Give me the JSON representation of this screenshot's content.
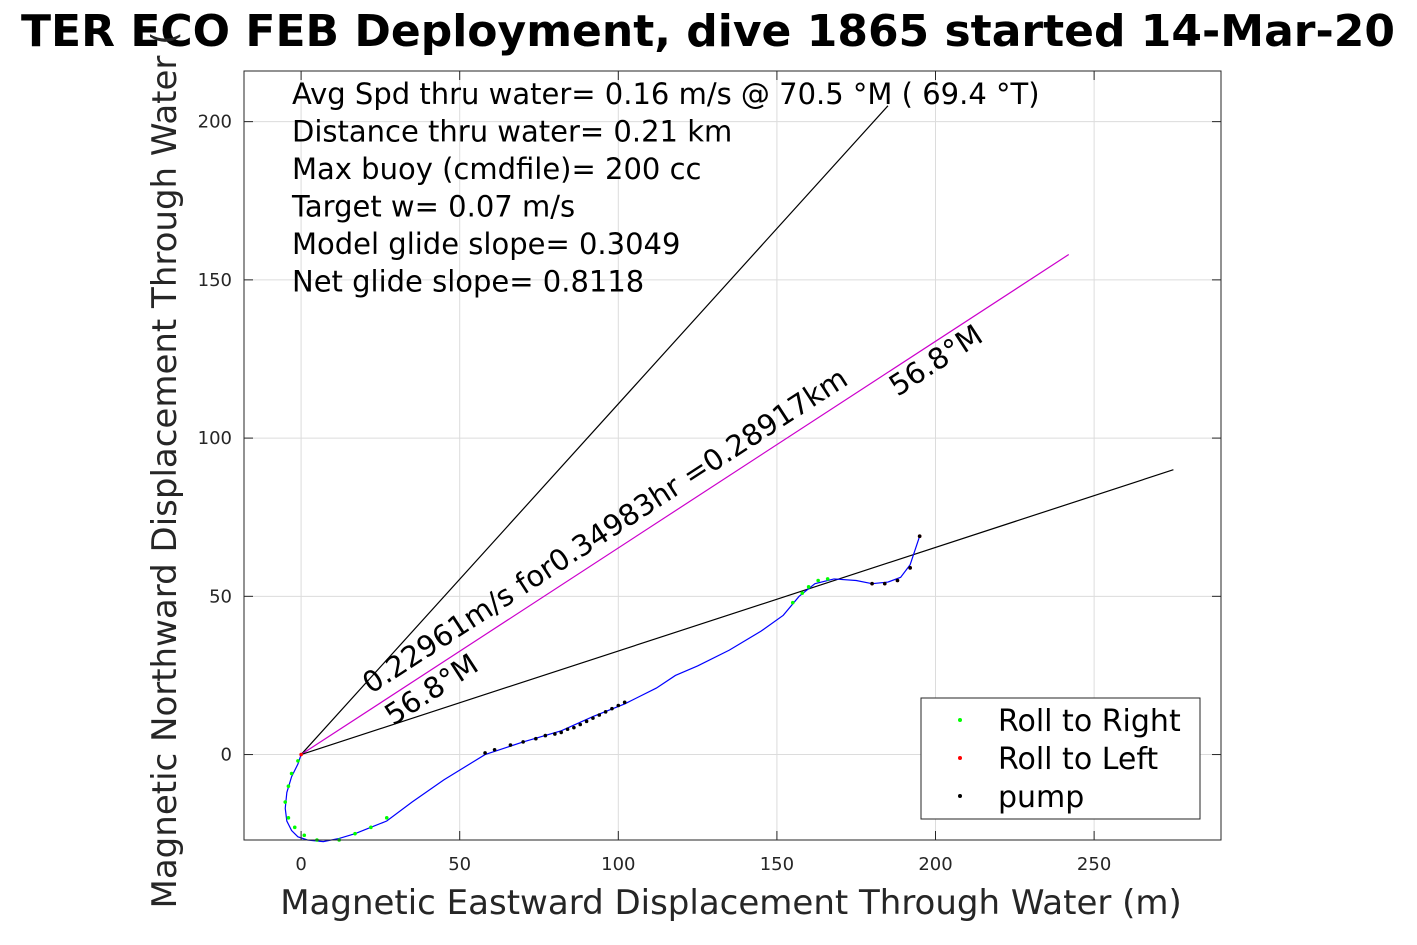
{
  "chart_data": {
    "type": "line",
    "title": "TER ECO FEB Deployment, dive 1865 started 14-Mar-20",
    "xlabel": "Magnetic Eastward Displacement Through Water (m)",
    "ylabel": "Magnetic Northward Displacement Through Water (",
    "xlim": [
      -18,
      290
    ],
    "ylim": [
      -27,
      216
    ],
    "xticks": [
      0,
      50,
      100,
      150,
      200,
      250
    ],
    "yticks": [
      0,
      50,
      100,
      150,
      200
    ],
    "grid": true,
    "stats": [
      "Avg Spd thru water=  0.16 m/s @  70.5 °M ( 69.4 °T)",
      "Distance thru water=  0.21 km",
      "Max buoy (cmdfile)= 200 cc",
      "Target w= 0.07 m/s",
      "Model glide slope= 0.3049",
      "Net glide slope= 0.8118"
    ],
    "reference_lines": [
      {
        "x": [
          0,
          185
        ],
        "y": [
          0,
          205
        ],
        "color": "#000000"
      },
      {
        "x": [
          0,
          242
        ],
        "y": [
          0,
          158
        ],
        "color": "#cc00cc"
      },
      {
        "x": [
          0,
          275
        ],
        "y": [
          0,
          90
        ],
        "color": "#000000"
      }
    ],
    "annotations": [
      {
        "text": "0.22961m/s for0.34983hr =0.28917km",
        "x": 22,
        "y": 19,
        "angle": 33
      },
      {
        "text": "56.8°M",
        "x": 29,
        "y": 9,
        "angle": 33
      },
      {
        "text": "56.8°M",
        "x": 188,
        "y": 113,
        "angle": 33
      }
    ],
    "series": [
      {
        "name": "track",
        "color": "#0000ff",
        "x": [
          0,
          -1,
          -3,
          -4.5,
          -5,
          -4.5,
          -3,
          -1,
          2,
          7,
          12,
          17,
          22,
          27,
          35,
          45,
          58,
          70,
          82,
          92,
          102,
          112,
          118,
          125,
          135,
          145,
          152,
          157,
          162,
          168,
          175,
          180,
          185,
          189,
          192,
          195
        ],
        "y": [
          0,
          -3,
          -7,
          -12,
          -17,
          -21,
          -24,
          -26,
          -27,
          -27.5,
          -26.5,
          -25,
          -23,
          -21,
          -15,
          -8,
          0,
          4,
          7.5,
          12,
          16,
          21,
          25,
          28,
          33,
          39,
          44,
          50,
          54,
          55.5,
          55,
          54,
          54.5,
          56,
          60,
          69
        ]
      },
      {
        "name": "Roll to Right",
        "color": "#00ff00",
        "x": [
          -1,
          -3,
          -4,
          -5,
          -4,
          -2,
          1,
          5,
          12,
          17,
          22,
          27,
          155,
          158,
          160,
          163,
          166
        ],
        "y": [
          -2,
          -6,
          -10,
          -15,
          -20,
          -23,
          -25.5,
          -27,
          -27,
          -25,
          -23,
          -20,
          48,
          51,
          53,
          55,
          55.5
        ]
      },
      {
        "name": "Roll to Left",
        "color": "#ff0000",
        "x": [
          0,
          180,
          184,
          188,
          192,
          195
        ],
        "y": [
          0,
          54,
          54,
          55,
          59,
          69
        ]
      },
      {
        "name": "pump",
        "color": "#000000",
        "x": [
          58,
          61,
          66,
          70,
          74,
          77,
          80,
          82,
          84,
          86,
          88,
          90,
          92,
          94,
          96,
          98,
          100,
          102,
          180,
          184,
          188,
          192,
          195
        ],
        "y": [
          0.5,
          1.5,
          3,
          4,
          5,
          6,
          6.5,
          7,
          8,
          8.5,
          9.5,
          10.5,
          11.5,
          12.5,
          13.5,
          14.5,
          15.5,
          16.5,
          54,
          54,
          55,
          59,
          69
        ]
      }
    ],
    "legend": {
      "placement": "bottom-right",
      "entries": [
        {
          "label": "Roll to Right",
          "color": "#00ff00"
        },
        {
          "label": "Roll to Left",
          "color": "#ff0000"
        },
        {
          "label": "pump",
          "color": "#000000"
        }
      ]
    }
  }
}
